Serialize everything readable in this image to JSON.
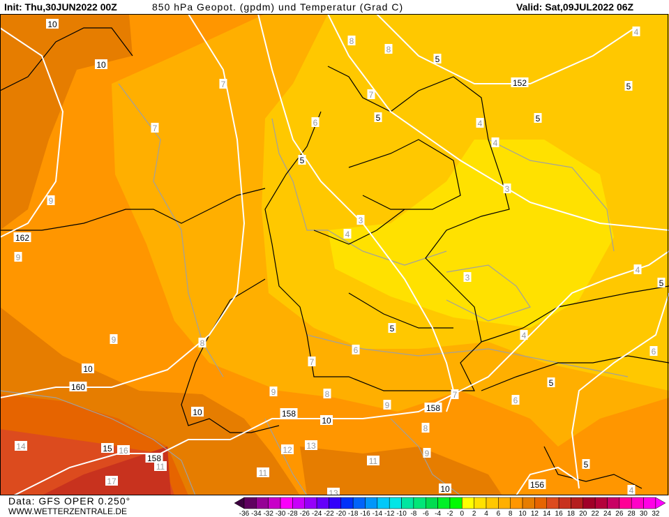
{
  "header": {
    "init": "Init: Thu,30JUN2022 00Z",
    "title": "850 hPa Geopot. (gpdm) und Temperatur (Grad C)",
    "valid": "Valid: Sat,09JUL2022 06Z"
  },
  "footer": {
    "data_source": "Data: GFS OPER 0.250°",
    "website": "WWW.WETTERZENTRALE.DE"
  },
  "colors": {
    "t_2_4": "#ffe100",
    "t_4_6": "#ffc800",
    "t_6_8": "#ffaf00",
    "t_8_10": "#ff9600",
    "t_10_12": "#e67d00",
    "t_12_14": "#e66400",
    "t_14_16": "#dc4b1e",
    "t_16_18": "#c8321e",
    "geopotential_line": "#ffffff",
    "isotherm_line": "#a0a0a0",
    "border_line": "#000000"
  },
  "geopotential_labels": [
    "10",
    "10",
    "162",
    "10",
    "160",
    "10",
    "158",
    "10",
    "158",
    "15",
    "158",
    "10",
    "156",
    "152",
    "5",
    "5",
    "5",
    "5",
    "5",
    "5",
    "5",
    "5",
    "5"
  ],
  "temperature_labels": [
    "4",
    "8",
    "8",
    "7",
    "7",
    "6",
    "4",
    "7",
    "4",
    "3",
    "9",
    "3",
    "4",
    "9",
    "4",
    "3",
    "4",
    "9",
    "8",
    "6",
    "6",
    "7",
    "9",
    "8",
    "7",
    "6",
    "9",
    "8",
    "14",
    "12",
    "13",
    "16",
    "9",
    "11",
    "11",
    "11",
    "17",
    "4",
    "13"
  ],
  "colorbar": {
    "labels": [
      "-36",
      "-34",
      "-32",
      "-30",
      "-28",
      "-26",
      "-24",
      "-22",
      "-20",
      "-18",
      "-16",
      "-14",
      "-12",
      "-10",
      "-8",
      "-6",
      "-4",
      "-2",
      "0",
      "2",
      "4",
      "6",
      "8",
      "10",
      "12",
      "14",
      "16",
      "18",
      "20",
      "22",
      "24",
      "26",
      "28",
      "30",
      "32"
    ],
    "colors": [
      "#600060",
      "#960096",
      "#c800c8",
      "#fa00fa",
      "#c800fa",
      "#9600fa",
      "#6400fa",
      "#3200fa",
      "#0032fa",
      "#0064fa",
      "#0096fa",
      "#00c8fa",
      "#00e6e6",
      "#00e6a0",
      "#00e678",
      "#00dc50",
      "#00f028",
      "#00fa00",
      "#ffff00",
      "#ffe100",
      "#ffc800",
      "#ffaf00",
      "#ff9600",
      "#e67d00",
      "#e66400",
      "#dc4b1e",
      "#c8321e",
      "#b41e1e",
      "#a00028",
      "#b4003c",
      "#c80064",
      "#ff0096",
      "#ff00c8",
      "#ff00e6"
    ],
    "low_arrow_color": "#3c0040",
    "high_arrow_color": "#ff00ff"
  }
}
